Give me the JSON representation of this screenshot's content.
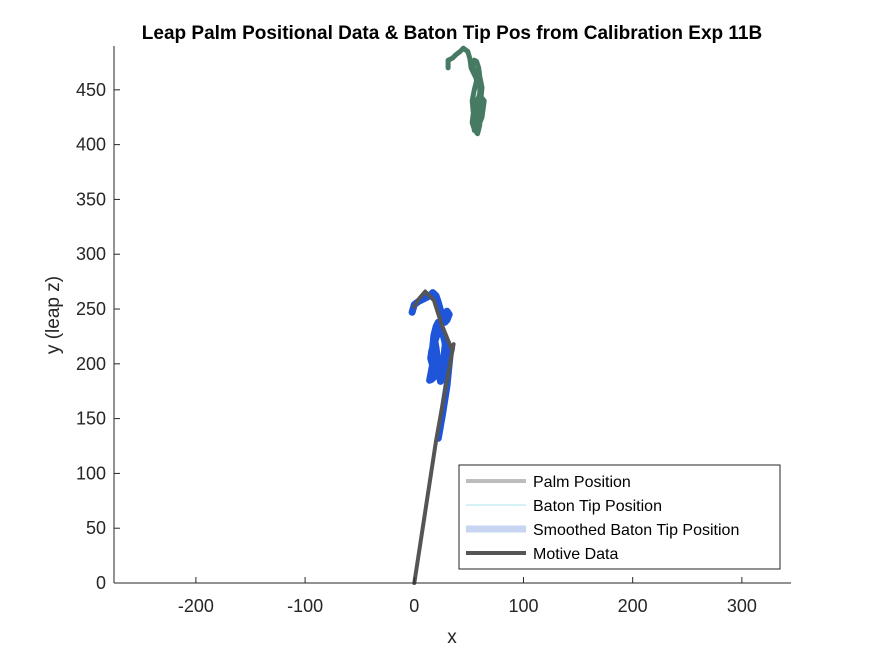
{
  "chart_data": {
    "type": "line",
    "title": "Leap Palm Positional Data & Baton Tip Pos from Calibration Exp 11B",
    "xlabel": "x",
    "ylabel": "y (leap z)",
    "xlim": [
      -275,
      345
    ],
    "ylim": [
      0,
      490
    ],
    "xticks": [
      -200,
      -100,
      0,
      100,
      200,
      300
    ],
    "yticks": [
      0,
      50,
      100,
      150,
      200,
      250,
      300,
      350,
      400,
      450
    ],
    "grid": false,
    "legend_position": "bottom-right",
    "colors": {
      "palm": "#467a63",
      "baton_tip": "#1f55d8",
      "smoothed_legend": "#c7d4f2",
      "motive": "#555555",
      "palm_legend": "#bdbdbd",
      "baton_legend": "#a9e4ec"
    },
    "series": [
      {
        "name": "Palm Position",
        "x": [
          31,
          31,
          35,
          38,
          42,
          45,
          49,
          51,
          52,
          55,
          57,
          58,
          60,
          60,
          59,
          58,
          57,
          58,
          60,
          62,
          64,
          60,
          57,
          55,
          54,
          53,
          55,
          58,
          60,
          57,
          54,
          53,
          55,
          57,
          56,
          54,
          53,
          55,
          57,
          59,
          60,
          62,
          61,
          59,
          57,
          55
        ],
        "y": [
          470,
          477,
          479,
          482,
          485,
          488,
          485,
          478,
          470,
          464,
          460,
          456,
          452,
          447,
          443,
          438,
          430,
          424,
          420,
          425,
          440,
          445,
          440,
          432,
          428,
          420,
          414,
          410,
          418,
          425,
          430,
          440,
          450,
          458,
          465,
          470,
          474,
          477,
          476,
          470,
          462,
          452,
          442,
          430,
          420,
          413
        ]
      },
      {
        "name": "Baton Tip Position",
        "x": [
          -2,
          0,
          4,
          8,
          12,
          15,
          17,
          20,
          22,
          24,
          26,
          28,
          30,
          32,
          30,
          27,
          24,
          22,
          20,
          18,
          16,
          15,
          17,
          20,
          23,
          26,
          28,
          29,
          28,
          26,
          24,
          22,
          20,
          18,
          17,
          16,
          18,
          21,
          24,
          27,
          30,
          31,
          30,
          28,
          27,
          26,
          25,
          24,
          23,
          22,
          21,
          20,
          19,
          18,
          17,
          15,
          14,
          16,
          20,
          25,
          30,
          34,
          33,
          30,
          26,
          22
        ],
        "y": [
          247,
          254,
          257,
          259,
          261,
          263,
          265,
          262,
          256,
          249,
          243,
          238,
          240,
          245,
          248,
          243,
          236,
          230,
          224,
          218,
          212,
          205,
          198,
          192,
          189,
          193,
          200,
          210,
          220,
          228,
          234,
          238,
          234,
          226,
          216,
          206,
          199,
          194,
          192,
          196,
          204,
          212,
          220,
          215,
          205,
          196,
          188,
          184,
          190,
          198,
          206,
          214,
          220,
          210,
          200,
          190,
          185,
          186,
          190,
          198,
          206,
          214,
          210,
          180,
          155,
          132
        ]
      },
      {
        "name": "Smoothed Baton Tip Position",
        "x": [
          -2,
          0,
          4,
          8,
          12,
          15,
          17,
          20,
          22,
          24,
          26,
          28,
          30,
          32,
          30,
          27,
          24,
          22,
          20,
          18,
          16,
          15,
          17,
          20,
          23,
          26,
          28,
          29,
          28,
          26,
          24,
          22,
          20,
          18,
          17,
          16,
          18,
          21,
          24,
          27,
          30,
          31,
          30,
          28,
          27,
          26,
          25,
          24,
          23,
          22,
          21,
          20,
          19,
          18,
          17,
          15,
          14,
          16,
          20,
          25,
          30,
          34,
          33,
          30,
          26,
          22
        ],
        "y": [
          247,
          254,
          257,
          259,
          261,
          263,
          265,
          262,
          256,
          249,
          243,
          238,
          240,
          245,
          248,
          243,
          236,
          230,
          224,
          218,
          212,
          205,
          198,
          192,
          189,
          193,
          200,
          210,
          220,
          228,
          234,
          238,
          234,
          226,
          216,
          206,
          199,
          194,
          192,
          196,
          204,
          212,
          220,
          215,
          205,
          196,
          188,
          184,
          190,
          198,
          206,
          214,
          220,
          210,
          200,
          190,
          185,
          186,
          190,
          198,
          206,
          214,
          210,
          180,
          155,
          132
        ]
      },
      {
        "name": "Motive Data",
        "x": [
          0,
          20,
          36,
          34,
          25,
          18,
          10,
          4,
          0
        ],
        "y": [
          0,
          130,
          218,
          214,
          236,
          258,
          266,
          259,
          252
        ]
      }
    ]
  }
}
